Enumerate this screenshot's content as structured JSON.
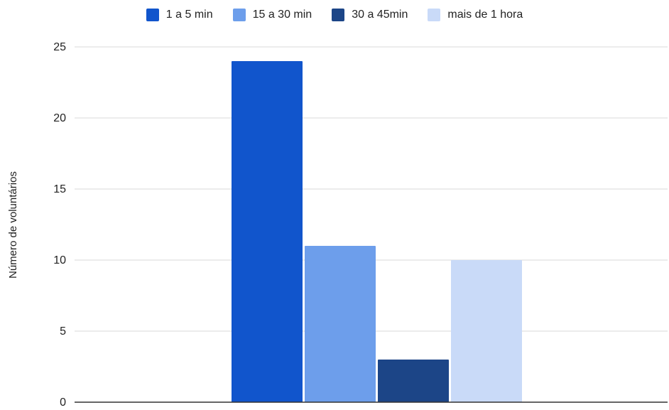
{
  "chart_data": {
    "type": "bar",
    "title": "",
    "xlabel": "",
    "ylabel": "Número de voluntários",
    "ylim": [
      0,
      25
    ],
    "yticks": [
      "0",
      "5",
      "10",
      "15",
      "20",
      "25"
    ],
    "grid": true,
    "legend_position": "top",
    "series": [
      {
        "name": "1 a 5 min",
        "value": 24,
        "color": "#1155cc"
      },
      {
        "name": "15 a 30 min",
        "value": 11,
        "color": "#6d9eeb"
      },
      {
        "name": "30 a 45min",
        "value": 3,
        "color": "#1c4587"
      },
      {
        "name": "mais de 1 hora",
        "value": 10,
        "color": "#c9daf8"
      }
    ]
  }
}
